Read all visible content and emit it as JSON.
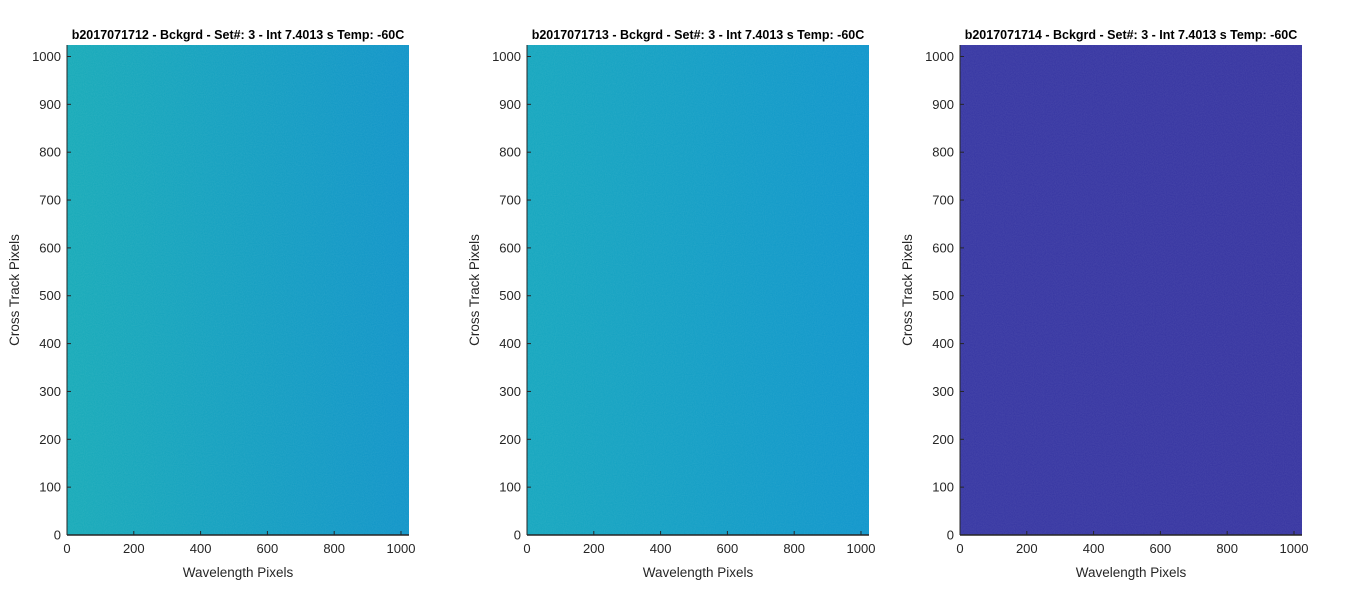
{
  "chart_data": [
    {
      "type": "heatmap",
      "title": "b2017071712 - Bckgrd - Set#: 3 - Int 7.4013 s Temp: -60C",
      "xlabel": "Wavelength Pixels",
      "ylabel": "Cross Track Pixels",
      "xlim": [
        0,
        1024
      ],
      "ylim": [
        0,
        1024
      ],
      "x_ticks": [
        0,
        200,
        400,
        600,
        800,
        1000
      ],
      "y_ticks": [
        0,
        100,
        200,
        300,
        400,
        500,
        600,
        700,
        800,
        900,
        1000
      ],
      "grid": false,
      "colors": {
        "left": "#16aab8",
        "right": "#0f94c8"
      }
    },
    {
      "type": "heatmap",
      "title": "b2017071713 - Bckgrd - Set#: 3 - Int 7.4013 s Temp: -60C",
      "xlabel": "Wavelength Pixels",
      "ylabel": "Cross Track Pixels",
      "xlim": [
        0,
        1024
      ],
      "ylim": [
        0,
        1024
      ],
      "x_ticks": [
        0,
        200,
        400,
        600,
        800,
        1000
      ],
      "y_ticks": [
        0,
        100,
        200,
        300,
        400,
        500,
        600,
        700,
        800,
        900,
        1000
      ],
      "grid": false,
      "colors": {
        "left": "#14a6be",
        "right": "#0e95cb"
      }
    },
    {
      "type": "heatmap",
      "title": "b2017071714 - Bckgrd - Set#: 3 - Int 7.4013 s Temp: -60C",
      "xlabel": "Wavelength Pixels",
      "ylabel": "Cross Track Pixels",
      "xlim": [
        0,
        1024
      ],
      "ylim": [
        0,
        1024
      ],
      "x_ticks": [
        0,
        200,
        400,
        600,
        800,
        1000
      ],
      "y_ticks": [
        0,
        100,
        200,
        300,
        400,
        500,
        600,
        700,
        800,
        900,
        1000
      ],
      "grid": false,
      "colors": {
        "left": "#3535a2",
        "right": "#3533a0"
      }
    }
  ]
}
